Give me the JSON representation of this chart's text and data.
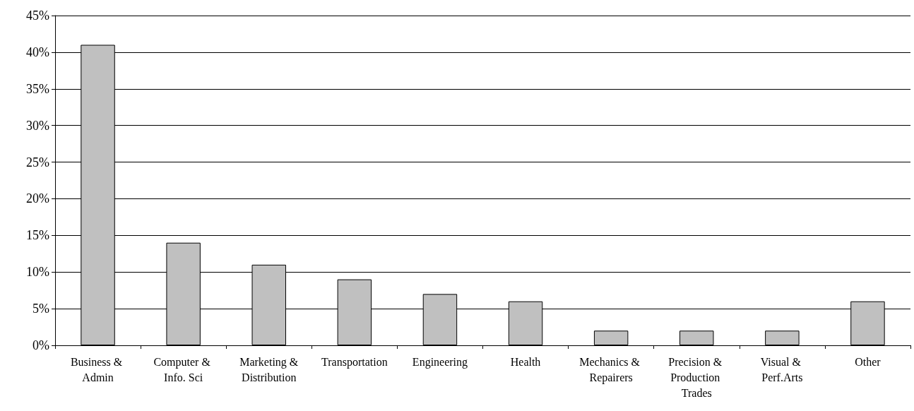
{
  "chart_data": {
    "type": "bar",
    "categories": [
      "Business & Admin",
      "Computer & Info. Sci",
      "Marketing &Distribution",
      "Transportation",
      "Engineering",
      "Health",
      "Mechanics & Repairers",
      "Precision & Production Trades",
      "Visual & Perf.Arts",
      "Other"
    ],
    "values": [
      41,
      14,
      11,
      9,
      7,
      6,
      2,
      2,
      2,
      6
    ],
    "color": "#c0c0c0",
    "ylim": [
      0,
      45
    ],
    "yticks": [
      {
        "value": 0,
        "label": "0%"
      },
      {
        "value": 5,
        "label": "5%"
      },
      {
        "value": 10,
        "label": "10%"
      },
      {
        "value": 15,
        "label": "15%"
      },
      {
        "value": 20,
        "label": "20%"
      },
      {
        "value": 25,
        "label": "25%"
      },
      {
        "value": 30,
        "label": "30%"
      },
      {
        "value": 35,
        "label": "35%"
      },
      {
        "value": 40,
        "label": "40%"
      },
      {
        "value": 45,
        "label": "45%"
      }
    ],
    "grid": "y"
  }
}
